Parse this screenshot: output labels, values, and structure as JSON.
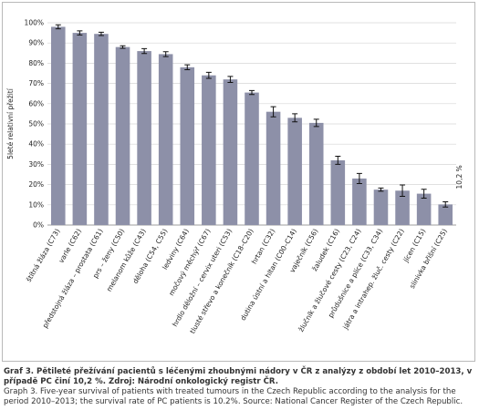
{
  "chart_data": {
    "type": "bar",
    "y_label": "5leté relativní přežití",
    "categories": [
      "štítná žláza (C73)",
      "varle (C62)",
      "předstojná žláza – prostata (C61)",
      "prs – ženy (C50)",
      "melanom kůže (C43)",
      "děloha (C54, C55)",
      "ledviny (C64)",
      "močový měchýř (C67)",
      "hrdlo děložní – cervix uteri (C53)",
      "tlusté střevo a konečník (C18–C20)",
      "hrtan (C32)",
      "dutina ústní a hltan (C00–C14)",
      "vaječník (C56)",
      "žaludek (C16)",
      "žlučník a žlučové cesty (C23, C24)",
      "průdušnice a plíce (C33, C34)",
      "játra a intrahep. žluč. cesty (C22)",
      "jícen (C15)",
      "slinivka břišní (C25)"
    ],
    "values": [
      98,
      95,
      94.5,
      88,
      86,
      84.5,
      78,
      74,
      72,
      65.5,
      56,
      53,
      50.5,
      32,
      23,
      17.5,
      17,
      15.5,
      10.2
    ],
    "errors": [
      1,
      1,
      0.8,
      0.6,
      1.2,
      1.2,
      1.2,
      1.5,
      1.5,
      1,
      2.5,
      2,
      1.8,
      2,
      2.5,
      0.8,
      2.8,
      2.2,
      1.3
    ],
    "value_labels": [
      null,
      null,
      null,
      null,
      null,
      null,
      null,
      null,
      null,
      null,
      null,
      null,
      null,
      null,
      null,
      null,
      null,
      null,
      "10,2 %"
    ],
    "color": "#8d90a8",
    "ylim": [
      0,
      100
    ],
    "yticks": [
      {
        "value": 0,
        "label": "0%"
      },
      {
        "value": 10,
        "label": "10%"
      },
      {
        "value": 20,
        "label": "20%"
      },
      {
        "value": 30,
        "label": "30%"
      },
      {
        "value": 40,
        "label": "40%"
      },
      {
        "value": 50,
        "label": "50%"
      },
      {
        "value": 60,
        "label": "60%"
      },
      {
        "value": 70,
        "label": "70%"
      },
      {
        "value": 80,
        "label": "80%"
      },
      {
        "value": 90,
        "label": "90%"
      },
      {
        "value": 100,
        "label": "100%"
      }
    ],
    "grid": true
  },
  "caption": {
    "czech": "Graf 3. Pětileté přežívání pacientů s léčenými zhoubnými nádory v ČR z analýzy z období let 2010–2013, v případě PC činí 10,2 %. Zdroj: Národní onkologický registr ČR.",
    "english": "Graph 3. Five-year survival of patients with treated tumours in the Czech Republic according to the analysis for the period 2010–2013; the survival rate of PC patients is 10.2%. Source: National Cancer Register of the Czech Republic."
  }
}
